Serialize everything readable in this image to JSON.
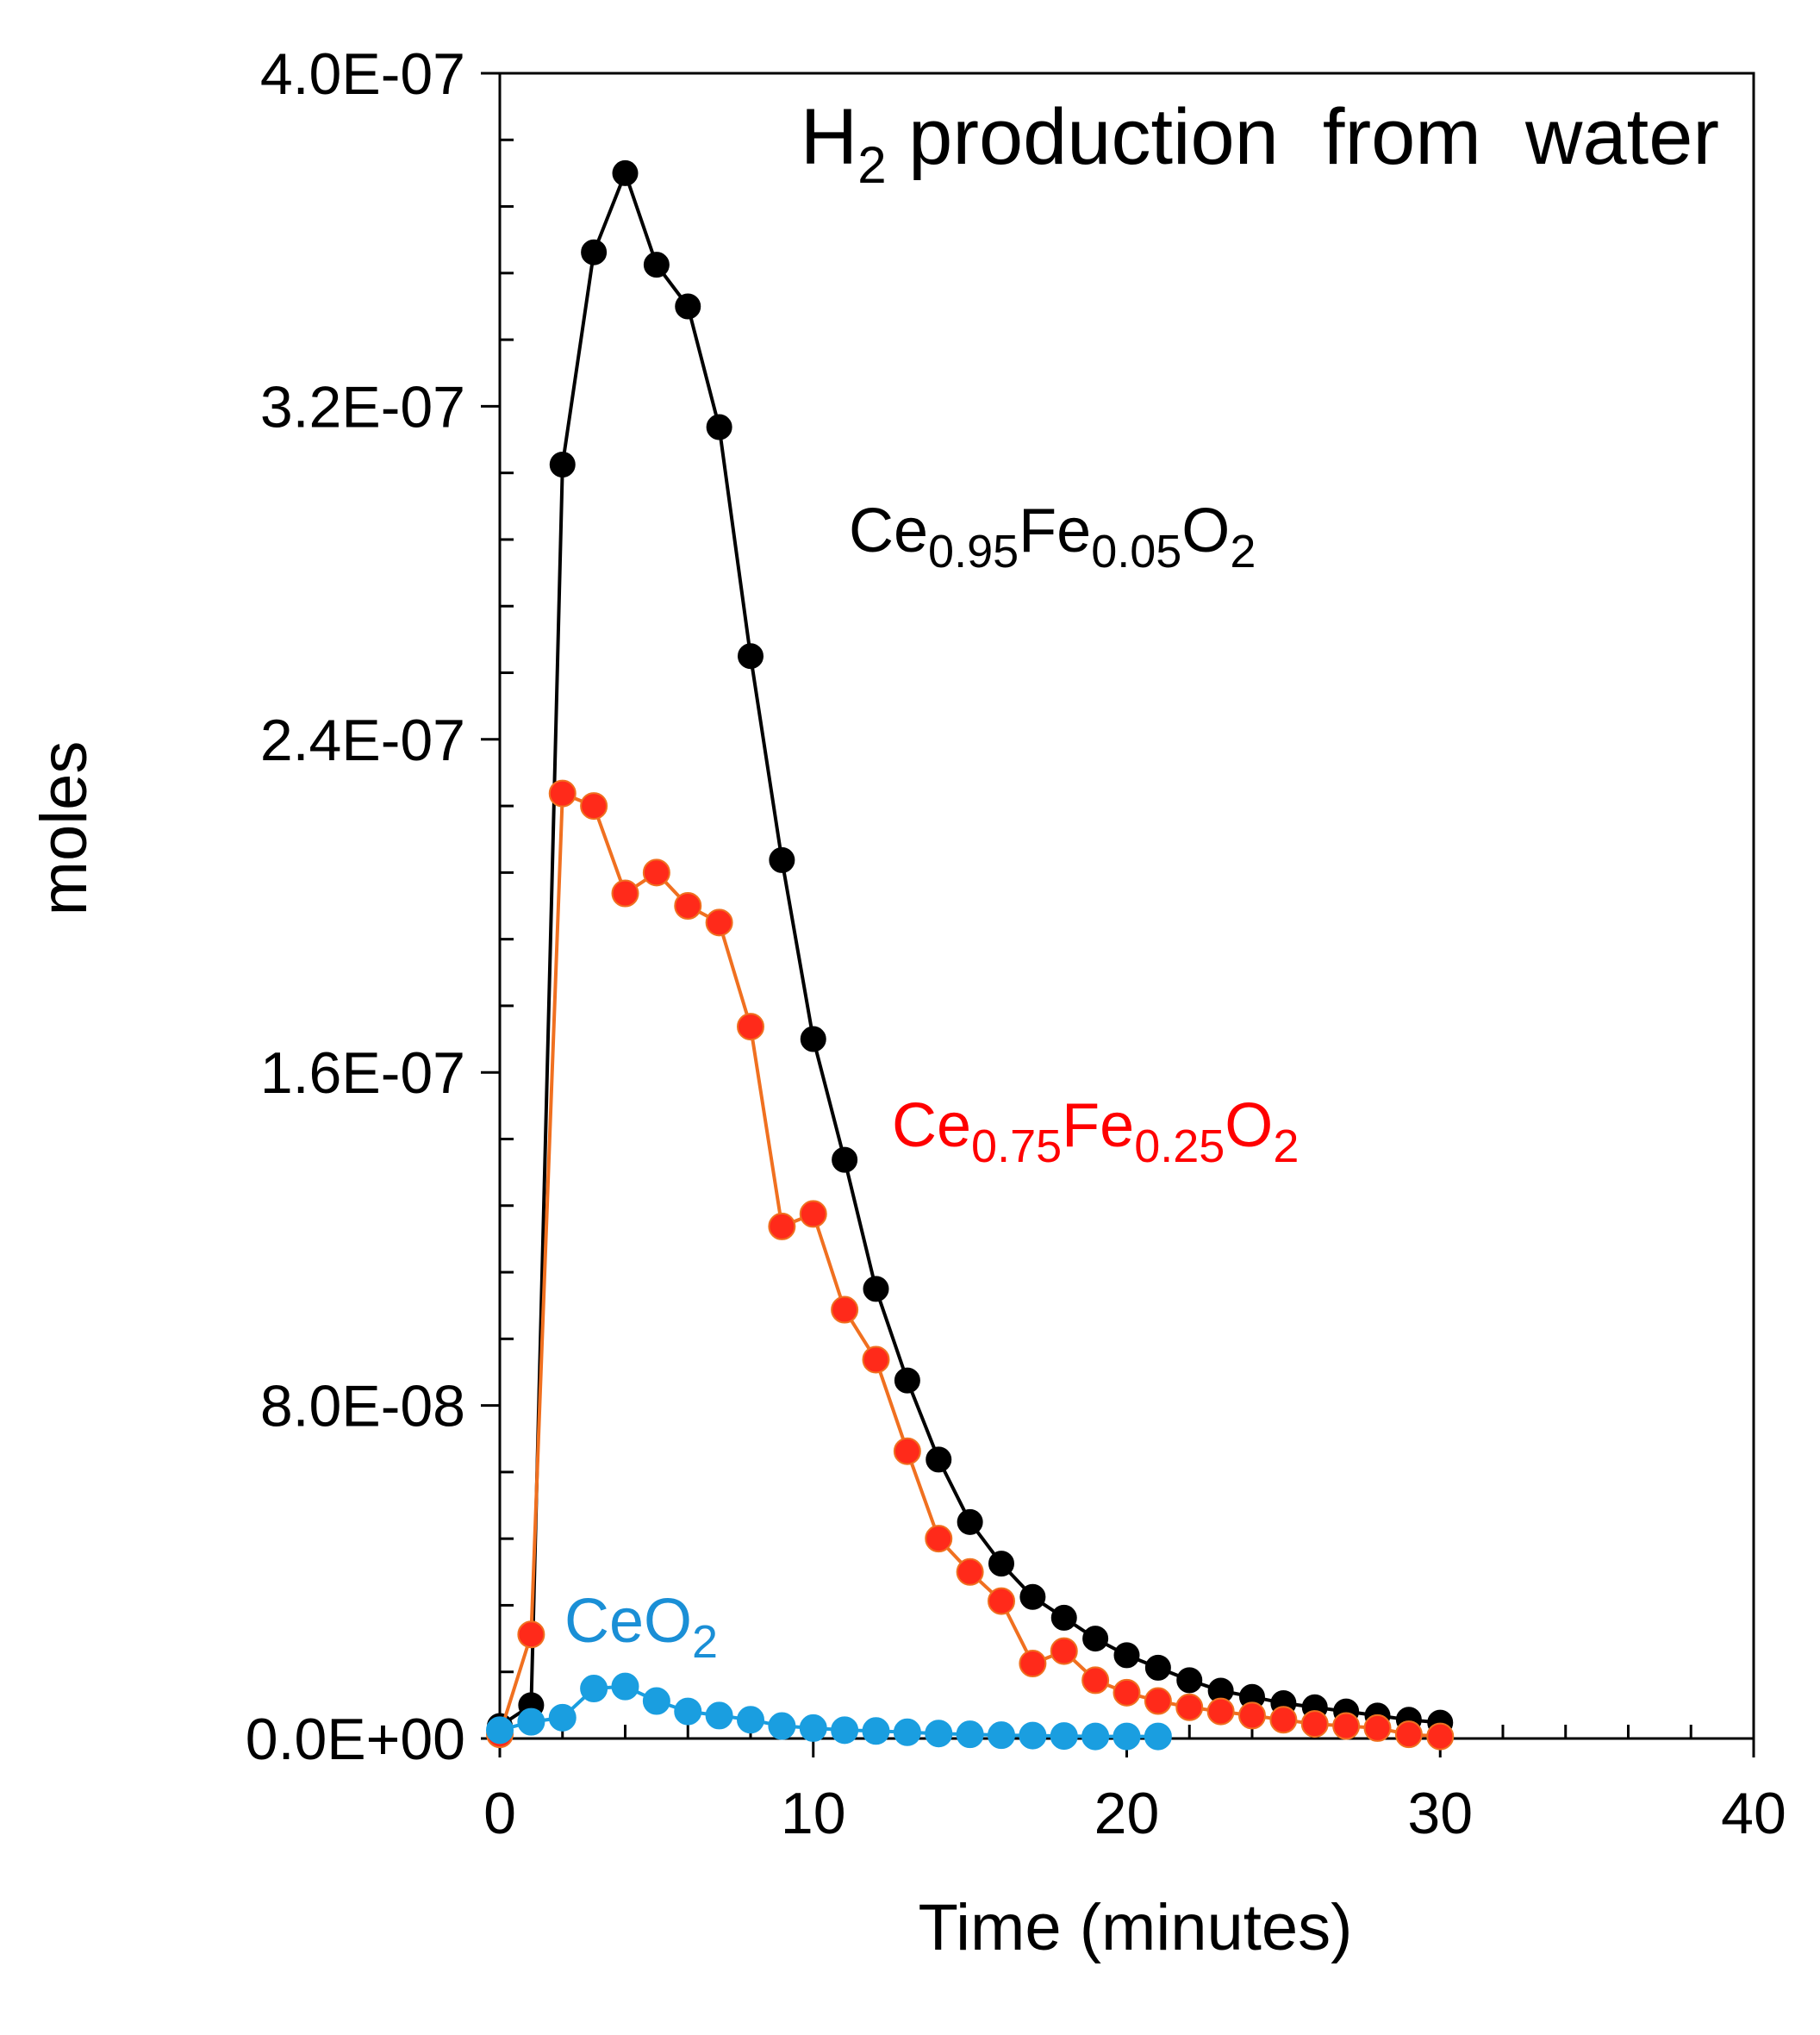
{
  "chart_data": {
    "type": "line",
    "title": "H2 production from water",
    "title_parts": {
      "base": "H",
      "sub": "2",
      "rest": " production  from  water"
    },
    "xlabel": "Time (minutes)",
    "ylabel": "moles",
    "xlim": [
      0,
      40
    ],
    "ylim": [
      0,
      4e-07
    ],
    "x_ticks": [
      0,
      10,
      20,
      30,
      40
    ],
    "x_tick_labels": [
      "0",
      "10",
      "20",
      "30",
      "40"
    ],
    "y_ticks": [
      0,
      8e-08,
      1.6e-07,
      2.4e-07,
      3.2e-07,
      4e-07
    ],
    "y_tick_labels": [
      "0.0E+00",
      "8.0E-08",
      "1.6E-07",
      "2.4E-07",
      "3.2E-07",
      "4.0E-07"
    ],
    "grid": false,
    "legend": "none (inline series labels)",
    "series": [
      {
        "name": "Ce0.95Fe0.05O2",
        "label_parts": [
          "Ce",
          "0.95",
          "Fe",
          "0.05",
          "O",
          "2"
        ],
        "line_color": "#000000",
        "marker_color": "#000000",
        "label_color": "#000000",
        "x": [
          0,
          1,
          2,
          3,
          4,
          5,
          6,
          7,
          8,
          9,
          10,
          11,
          12,
          13,
          14,
          15,
          16,
          17,
          18,
          19,
          20,
          21,
          22,
          23,
          24,
          25,
          26,
          27,
          28,
          29,
          30
        ],
        "y": [
          3e-09,
          8e-09,
          3.06e-07,
          3.57e-07,
          3.76e-07,
          3.54e-07,
          3.44e-07,
          3.15e-07,
          2.6e-07,
          2.11e-07,
          1.68e-07,
          1.39e-07,
          1.08e-07,
          8.6e-08,
          6.7e-08,
          5.2e-08,
          4.2e-08,
          3.4e-08,
          2.9e-08,
          2.4e-08,
          2e-08,
          1.7e-08,
          1.4e-08,
          1.15e-08,
          1e-08,
          8.5e-09,
          7.5e-09,
          6.5e-09,
          5.5e-09,
          4.5e-09,
          3.8e-09
        ]
      },
      {
        "name": "Ce0.75Fe0.25O2",
        "label_parts": [
          "Ce",
          "0.75",
          "Fe",
          "0.25",
          "O",
          "2"
        ],
        "line_color": "#f07020",
        "marker_color": "#ff2a1a",
        "label_color": "#ff0000",
        "x": [
          0,
          1,
          2,
          3,
          4,
          5,
          6,
          7,
          8,
          9,
          10,
          11,
          12,
          13,
          14,
          15,
          16,
          17,
          18,
          19,
          20,
          21,
          22,
          23,
          24,
          25,
          26,
          27,
          28,
          29,
          30
        ],
        "y": [
          1e-09,
          2.5e-08,
          2.27e-07,
          2.24e-07,
          2.03e-07,
          2.08e-07,
          2e-07,
          1.96e-07,
          1.71e-07,
          1.23e-07,
          1.26e-07,
          1.03e-07,
          9.1e-08,
          6.9e-08,
          4.8e-08,
          4e-08,
          3.3e-08,
          1.8e-08,
          2.1e-08,
          1.4e-08,
          1.1e-08,
          9e-09,
          7.5e-09,
          6.5e-09,
          5.5e-09,
          4.5e-09,
          3.5e-09,
          3e-09,
          2.5e-09,
          1e-09,
          5e-10
        ]
      },
      {
        "name": "CeO2",
        "label_parts": [
          "CeO",
          "2"
        ],
        "line_color": "#1a9ee0",
        "marker_color": "#1a9ee0",
        "label_color": "#1a8fd6",
        "x": [
          0,
          1,
          2,
          3,
          4,
          5,
          6,
          7,
          8,
          9,
          10,
          11,
          12,
          13,
          14,
          15,
          16,
          17,
          18,
          19,
          20,
          21
        ],
        "y": [
          2e-09,
          4e-09,
          5e-09,
          1.2e-08,
          1.25e-08,
          9e-09,
          6.5e-09,
          5.5e-09,
          4.5e-09,
          3e-09,
          2.5e-09,
          2e-09,
          1.8e-09,
          1.5e-09,
          1.2e-09,
          1e-09,
          8e-10,
          7e-10,
          6e-10,
          5e-10,
          5e-10,
          5e-10
        ]
      }
    ]
  }
}
